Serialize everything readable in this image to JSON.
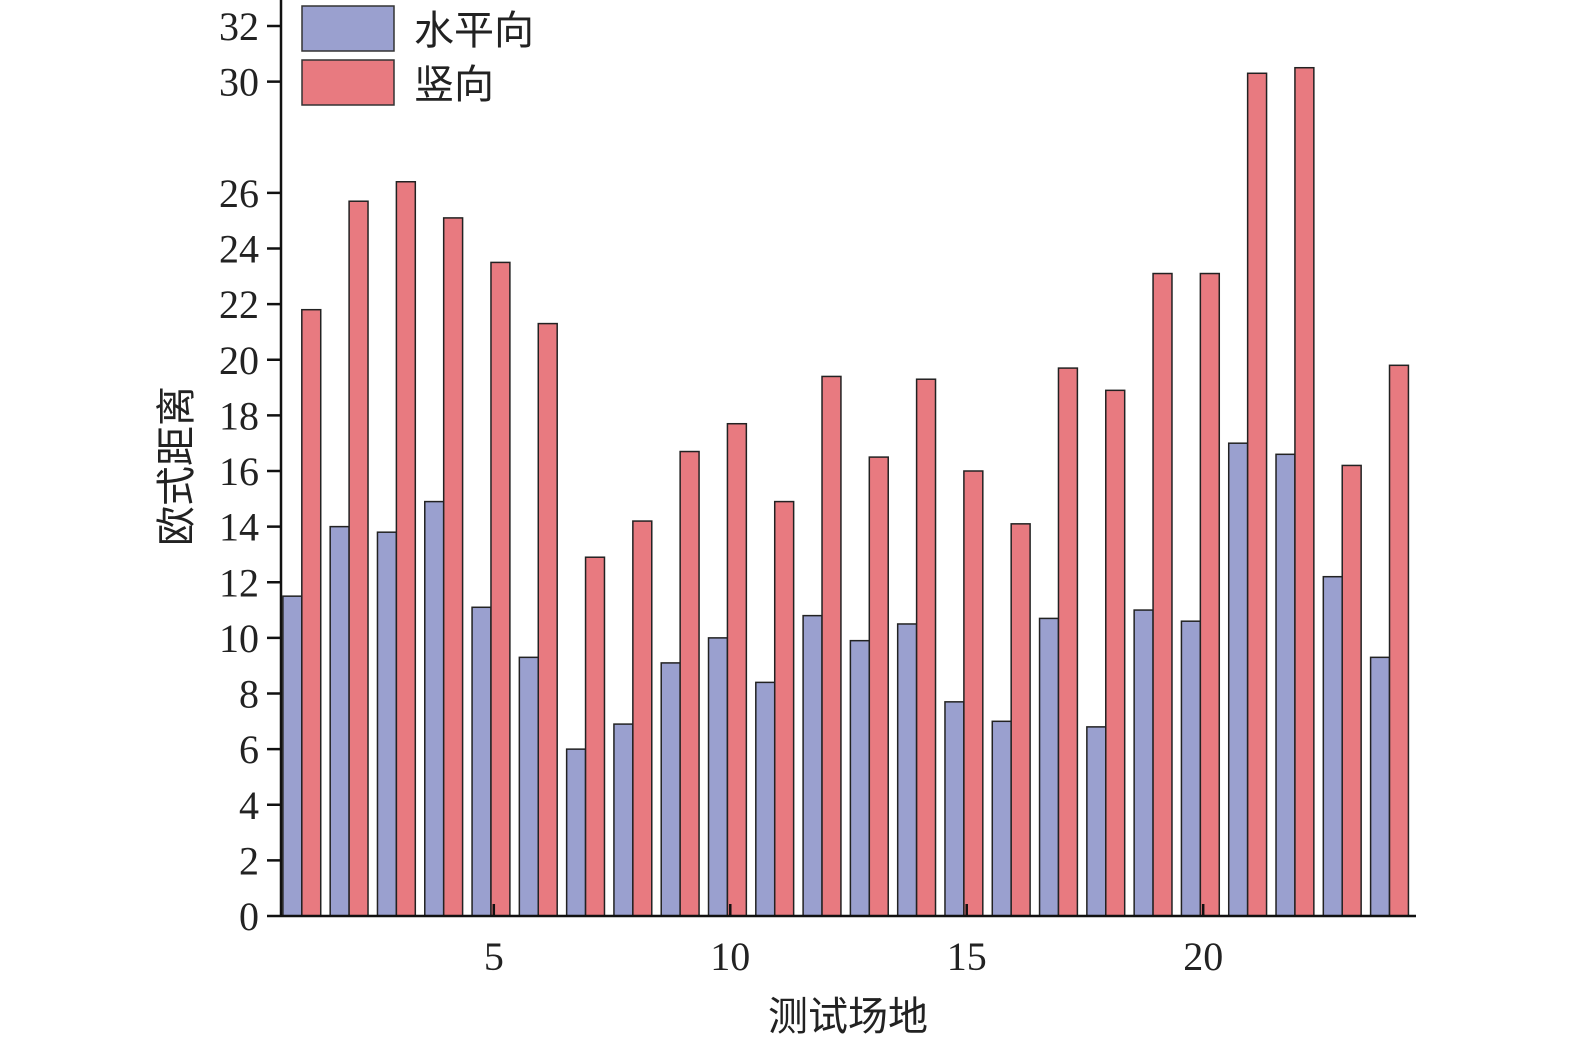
{
  "chart_data": {
    "type": "bar",
    "xlabel": "测试场地",
    "ylabel": "欧式距离",
    "categories": [
      1,
      2,
      3,
      4,
      5,
      6,
      7,
      8,
      9,
      10,
      11,
      12,
      13,
      14,
      15,
      16,
      17,
      18,
      19,
      20,
      21,
      22,
      23,
      24
    ],
    "x_ticks": [
      5,
      10,
      15,
      20
    ],
    "y_ticks": [
      0,
      2,
      4,
      6,
      8,
      10,
      12,
      14,
      16,
      18,
      20,
      22,
      24,
      26,
      30,
      32
    ],
    "ylim": [
      0,
      32
    ],
    "legend_position": "top-left",
    "grid": false,
    "series": [
      {
        "name": "水平向",
        "color": "#9aa0cf",
        "values": [
          11.5,
          14.0,
          13.8,
          14.9,
          11.1,
          9.3,
          6.0,
          6.9,
          9.1,
          10.0,
          8.4,
          10.8,
          9.9,
          10.5,
          7.7,
          7.0,
          10.7,
          6.8,
          11.0,
          10.6,
          17.0,
          16.6,
          12.2,
          9.3
        ]
      },
      {
        "name": "竖向",
        "color": "#e87a80",
        "values": [
          21.8,
          25.7,
          26.4,
          25.1,
          23.5,
          21.3,
          12.9,
          14.2,
          16.7,
          17.7,
          14.9,
          19.4,
          16.5,
          19.3,
          16.0,
          14.1,
          19.7,
          18.9,
          23.1,
          23.1,
          30.3,
          30.5,
          16.2,
          19.8
        ]
      }
    ]
  }
}
